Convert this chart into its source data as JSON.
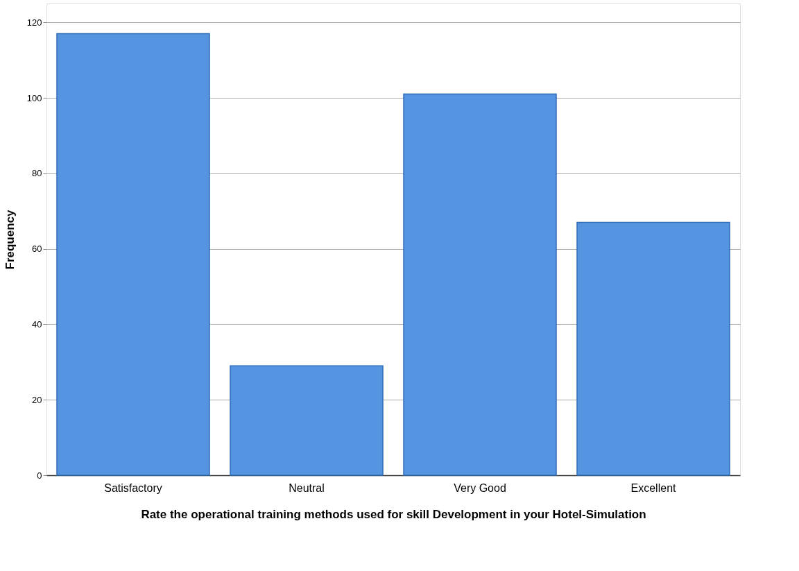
{
  "chart_data": {
    "type": "bar",
    "xlabel": "Rate the operational training methods used for skill Development in your Hotel-Simulation",
    "ylabel": "Frequency",
    "categories": [
      "Satisfactory",
      "Neutral",
      "Very Good",
      "Excellent"
    ],
    "values": [
      117,
      29,
      101,
      67
    ],
    "color": "#5594e0",
    "ylim": [
      0,
      125
    ],
    "yticks": [
      0,
      20,
      40,
      60,
      80,
      100,
      120
    ],
    "grid": "y"
  }
}
